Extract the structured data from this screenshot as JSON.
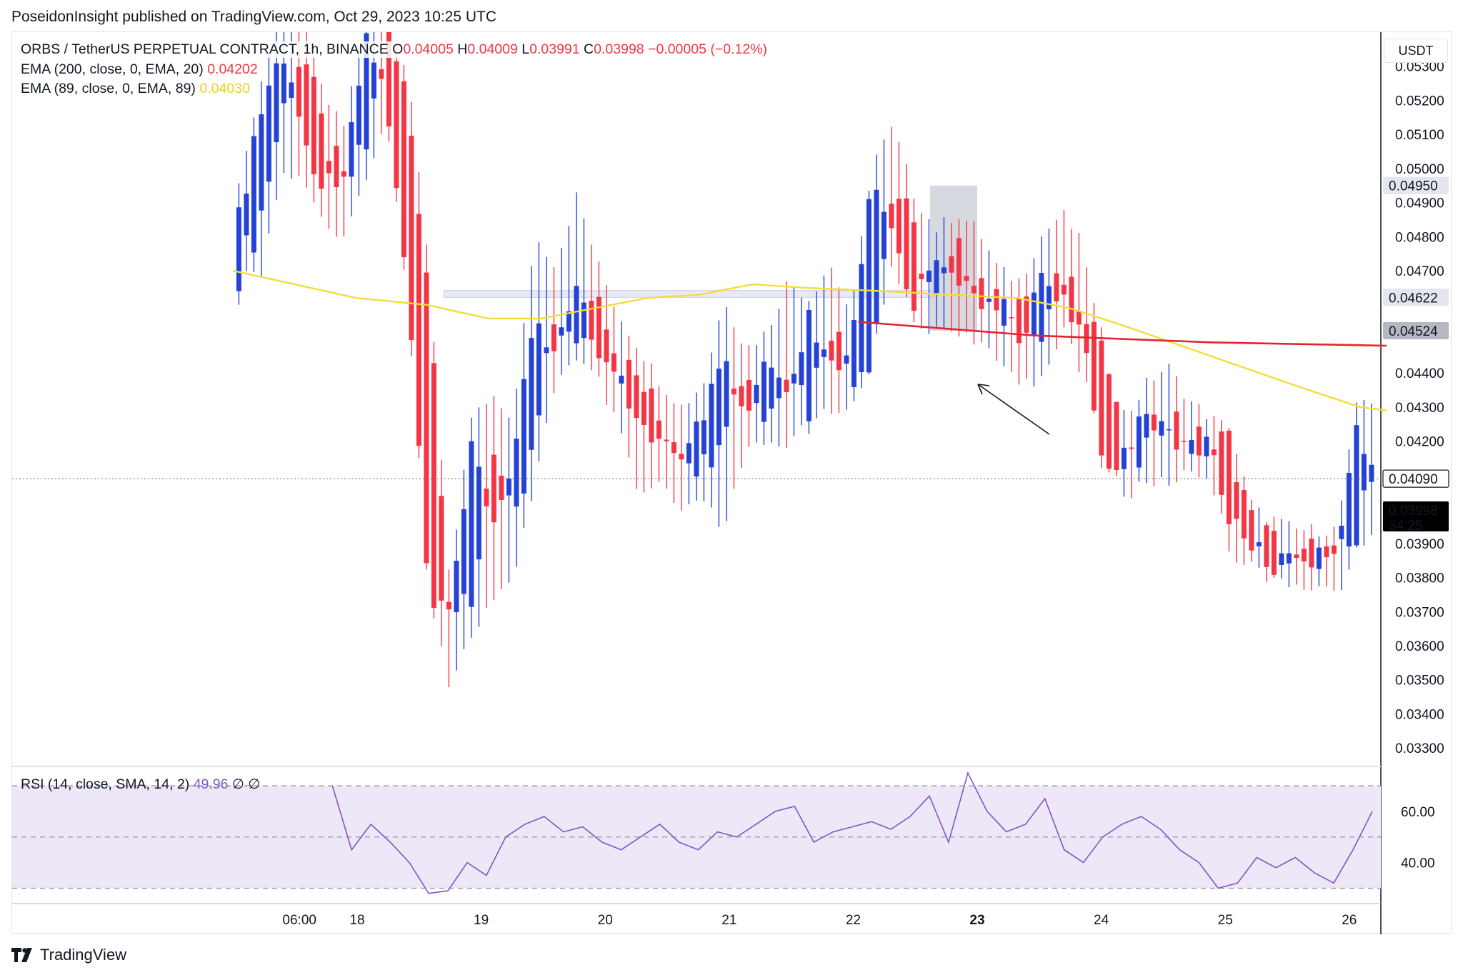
{
  "publish_line": "PoseidonInsight published on TradingView.com, Oct 29, 2023 10:25 UTC",
  "legend": {
    "symbol": "ORBS / TetherUS PERPETUAL CONTRACT, 1h, BINANCE",
    "o_label": "O",
    "o_value": "0.04005",
    "h_label": "H",
    "h_value": "0.04009",
    "l_label": "L",
    "l_value": "0.03991",
    "c_label": "C",
    "c_value": "0.03998",
    "change": "−0.00005 (−0.12%)",
    "ema200_label": "EMA (200, close, 0, EMA, 20)",
    "ema200_value": "0.04202",
    "ema89_label": "EMA (89, close, 0, EMA, 89)",
    "ema89_value": "0.04030",
    "rsi_label": "RSI (14, close, SMA, 14, 2)",
    "rsi_value": "49.96",
    "rsi_na1": "∅",
    "rsi_na2": "∅"
  },
  "currency": "USDT",
  "brand": "TradingView",
  "colors": {
    "up": "#2443d6",
    "down": "#f23645",
    "ema89": "#f5dc3a",
    "ema200": "#e3252f",
    "rsi": "#7e57c2",
    "rsi_band": "#ede7f8"
  },
  "chart_data": [
    {
      "type": "candlestick",
      "title": "ORBS / TetherUS PERPETUAL CONTRACT, 1h, BINANCE",
      "y_axis": {
        "min": 0.0325,
        "max": 0.054,
        "ticks": [
          "0.05300",
          "0.05200",
          "0.05100",
          "0.05000",
          "0.04900",
          "0.04800",
          "0.04700",
          "0.04400",
          "0.04300",
          "0.04200",
          "0.03900",
          "0.03800",
          "0.03700",
          "0.03600",
          "0.03500",
          "0.03400",
          "0.03300"
        ]
      },
      "x_axis": {
        "ticks": [
          "06:00",
          "18",
          "19",
          "20",
          "21",
          "22",
          "23",
          "24",
          "25",
          "26"
        ],
        "bold_tick": "23"
      },
      "price_badges": [
        {
          "label": "0.04950",
          "value": 0.0495,
          "style": "range"
        },
        {
          "label": "0.04622",
          "value": 0.04622,
          "style": "range"
        },
        {
          "label": "0.04524",
          "value": 0.04524,
          "style": "range-dark"
        },
        {
          "label": "0.04090",
          "value": 0.0409,
          "style": "crosshair"
        },
        {
          "label": "0.03998",
          "value": 0.03998,
          "countdown": "34:25",
          "style": "last"
        }
      ],
      "anchors": [
        [
          0.047,
          0.0495,
          0.0475,
          0.0485
        ],
        [
          0.0485,
          0.052,
          0.047,
          0.0515
        ],
        [
          0.0515,
          0.0545,
          0.05,
          0.0535
        ],
        [
          0.0535,
          0.0545,
          0.05,
          0.051
        ],
        [
          0.051,
          0.052,
          0.0485,
          0.0495
        ],
        [
          0.0495,
          0.051,
          0.048,
          0.05
        ],
        [
          0.0505,
          0.0545,
          0.05,
          0.054
        ],
        [
          0.054,
          0.0545,
          0.0515,
          0.052
        ],
        [
          0.052,
          0.0525,
          0.0463,
          0.0465
        ],
        [
          0.0465,
          0.047,
          0.038,
          0.0372
        ],
        [
          0.0372,
          0.0375,
          0.035,
          0.0368
        ],
        [
          0.0368,
          0.0425,
          0.0365,
          0.0422
        ],
        [
          0.0422,
          0.043,
          0.0375,
          0.0392
        ],
        [
          0.0392,
          0.0425,
          0.038,
          0.0418
        ],
        [
          0.0418,
          0.0478,
          0.041,
          0.0458
        ],
        [
          0.0458,
          0.047,
          0.044,
          0.0445
        ],
        [
          0.0445,
          0.049,
          0.0445,
          0.0468
        ],
        [
          0.0468,
          0.047,
          0.044,
          0.0442
        ],
        [
          0.0442,
          0.0455,
          0.0425,
          0.0438
        ],
        [
          0.0438,
          0.0445,
          0.0405,
          0.0425
        ],
        [
          0.0425,
          0.0435,
          0.041,
          0.042
        ],
        [
          0.042,
          0.0428,
          0.04,
          0.0412
        ],
        [
          0.0412,
          0.0435,
          0.0405,
          0.0428
        ],
        [
          0.0428,
          0.046,
          0.0395,
          0.0442
        ],
        [
          0.0442,
          0.0445,
          0.042,
          0.0425
        ],
        [
          0.0425,
          0.045,
          0.042,
          0.0445
        ],
        [
          0.0445,
          0.0465,
          0.042,
          0.043
        ],
        [
          0.043,
          0.046,
          0.043,
          0.0456
        ],
        [
          0.0456,
          0.047,
          0.043,
          0.044
        ],
        [
          0.044,
          0.0455,
          0.0433,
          0.0446
        ],
        [
          0.0446,
          0.05,
          0.0446,
          0.0496
        ],
        [
          0.0496,
          0.051,
          0.0475,
          0.048
        ],
        [
          0.048,
          0.049,
          0.0455,
          0.046
        ],
        [
          0.046,
          0.048,
          0.0455,
          0.0475
        ],
        [
          0.0475,
          0.0485,
          0.0455,
          0.047
        ],
        [
          0.047,
          0.048,
          0.045,
          0.0458
        ],
        [
          0.0458,
          0.0468,
          0.0445,
          0.0462
        ],
        [
          0.0462,
          0.0465,
          0.044,
          0.0448
        ],
        [
          0.0448,
          0.0478,
          0.044,
          0.047
        ],
        [
          0.047,
          0.0485,
          0.0455,
          0.0462
        ],
        [
          0.0462,
          0.0475,
          0.044,
          0.0448
        ],
        [
          0.0448,
          0.044,
          0.043,
          0.041
        ],
        [
          0.041,
          0.0425,
          0.0405,
          0.0418
        ],
        [
          0.0418,
          0.0435,
          0.041,
          0.043
        ],
        [
          0.043,
          0.044,
          0.041,
          0.042
        ],
        [
          0.042,
          0.043,
          0.0413,
          0.0418
        ],
        [
          0.0418,
          0.0425,
          0.0412,
          0.042
        ],
        [
          0.042,
          0.042,
          0.0388,
          0.0395
        ],
        [
          0.0395,
          0.0398,
          0.0387,
          0.039
        ],
        [
          0.039,
          0.0395,
          0.038,
          0.0383
        ],
        [
          0.0383,
          0.0392,
          0.038,
          0.0388
        ],
        [
          0.0388,
          0.0392,
          0.038,
          0.0385
        ],
        [
          0.0385,
          0.0392,
          0.0377,
          0.039
        ],
        [
          0.039,
          0.043,
          0.039,
          0.0427
        ],
        [
          0.0427,
          0.043,
          0.0395,
          0.04
        ]
      ],
      "overlays": {
        "ema89": [
          [
            0.0469,
            0.047
          ],
          [
            0.0476,
            0.0466
          ],
          [
            0.0483,
            0.0462
          ],
          [
            0.0491,
            0.046
          ],
          [
            0.0498,
            0.0456
          ],
          [
            0.0504,
            0.0456
          ],
          [
            0.051,
            0.0459
          ],
          [
            0.0516,
            0.0462
          ],
          [
            0.0522,
            0.0463
          ],
          [
            0.0528,
            0.0466
          ],
          [
            0.0534,
            0.0465
          ],
          [
            0.0543,
            0.0464
          ],
          [
            0.055,
            0.0463
          ],
          [
            0.0558,
            0.0462
          ],
          [
            0.0564,
            0.0459
          ],
          [
            0.057,
            0.0454
          ],
          [
            0.058,
            0.0445
          ],
          [
            0.059,
            0.0436
          ],
          [
            0.0597,
            0.043
          ],
          [
            0.06,
            0.0429
          ]
        ],
        "ema200": [
          [
            0.054,
            0.0455
          ],
          [
            0.056,
            0.0451
          ],
          [
            0.058,
            0.0449
          ],
          [
            0.06,
            0.0448
          ]
        ],
        "support_zone": [
          0.031,
          0.056,
          0.04622,
          0.04642
        ],
        "range_box": [
          0.0487,
          0.0516,
          0.04524,
          0.0495
        ],
        "arrow": [
          [
            0.0585,
            0.043
          ],
          [
            0.0545,
            0.0449
          ]
        ]
      }
    },
    {
      "type": "line",
      "title": "RSI (14, close, SMA, 14, 2)",
      "y_axis": {
        "min": 24,
        "max": 77,
        "ticks": [
          "60.00",
          "40.00"
        ],
        "bands": [
          70,
          50,
          30
        ]
      },
      "values": [
        70,
        45,
        55,
        48,
        40,
        28,
        29,
        40,
        35,
        50,
        55,
        58,
        52,
        54,
        48,
        45,
        50,
        55,
        48,
        45,
        52,
        50,
        55,
        60,
        62,
        48,
        52,
        54,
        56,
        53,
        58,
        66,
        48,
        75,
        60,
        52,
        55,
        65,
        45,
        40,
        50,
        55,
        58,
        53,
        45,
        40,
        30,
        32,
        42,
        38,
        42,
        36,
        32,
        45,
        60
      ]
    }
  ]
}
